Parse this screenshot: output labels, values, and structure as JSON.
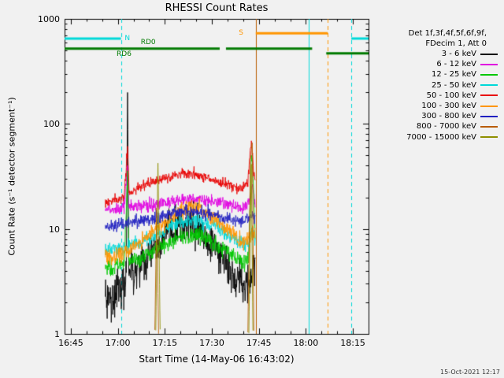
{
  "chart_data": {
    "type": "line",
    "title": "RHESSI Count Rates",
    "xlabel": "Start Time (14-May-06 16:43:02)",
    "ylabel": "Count Rate (s⁻¹ detector segment⁻¹)",
    "timestamp": "15-Oct-2021 12:17",
    "background": "#f1f1f1",
    "axis_color": "#000000",
    "grid": false,
    "y_axis": {
      "scale": "log",
      "min": 1,
      "max": 1000,
      "ticks": [
        {
          "label": "1000",
          "value": 1000
        },
        {
          "label": "100",
          "value": 100
        },
        {
          "label": "10",
          "value": 10
        },
        {
          "label": "1",
          "value": 1
        }
      ]
    },
    "x_axis": {
      "unit": "minutes since 16:43:02",
      "t_min": 0,
      "t_max": 97,
      "ticks": [
        {
          "label": "16:45",
          "t": 2
        },
        {
          "label": "17:00",
          "t": 17
        },
        {
          "label": "17:15",
          "t": 32
        },
        {
          "label": "17:30",
          "t": 47
        },
        {
          "label": "17:45",
          "t": 62
        },
        {
          "label": "18:00",
          "t": 77
        },
        {
          "label": "18:15",
          "t": 92
        }
      ]
    },
    "legend": {
      "position": "right",
      "header_lines": [
        "Det 1f,3f,4f,5f,6f,9f,",
        "FDecim 1, Att 0"
      ],
      "entries": [
        {
          "label": "3 - 6 keV",
          "color": "#000000"
        },
        {
          "label": "6 - 12 keV",
          "color": "#e000e0"
        },
        {
          "label": "12 - 25 keV",
          "color": "#00c800"
        },
        {
          "label": "25 - 50 keV",
          "color": "#00d8d8"
        },
        {
          "label": "50 - 100 keV",
          "color": "#e80000"
        },
        {
          "label": "100 - 300 keV",
          "color": "#ff9500"
        },
        {
          "label": "300 - 800 keV",
          "color": "#2020c0"
        },
        {
          "label": "800 - 7000 keV",
          "color": "#b85c00"
        },
        {
          "label": "7000 - 15000 keV",
          "color": "#8f8f00"
        }
      ]
    },
    "series": [
      {
        "name": "3 - 6 keV",
        "color": "#000000",
        "noise": 0.1,
        "segments": [
          [
            [
              13,
              2.6
            ],
            [
              15,
              2.2
            ],
            [
              17,
              2.7
            ],
            [
              19,
              3.0
            ],
            [
              19.7,
              3.3
            ],
            [
              20.1,
              230
            ],
            [
              20.5,
              3.6
            ],
            [
              23,
              4.2
            ],
            [
              26,
              5.2
            ],
            [
              29,
              6.5
            ],
            [
              32,
              8.3
            ],
            [
              35,
              9.8
            ],
            [
              38,
              10.8
            ],
            [
              41,
              10.8
            ],
            [
              44,
              9.3
            ],
            [
              47,
              7.2
            ],
            [
              50,
              5.2
            ],
            [
              53,
              3.9
            ],
            [
              55.5,
              3.1
            ],
            [
              57.5,
              3.0
            ],
            [
              59,
              3.3
            ],
            [
              60,
              4.0
            ],
            [
              60.8,
              4.6
            ]
          ]
        ]
      },
      {
        "name": "6 - 12 keV",
        "color": "#e000e0",
        "noise": 0.03,
        "segments": [
          [
            [
              13,
              15.5
            ],
            [
              16,
              15.5
            ],
            [
              19,
              15.8
            ],
            [
              20.1,
              40
            ],
            [
              20.5,
              16
            ],
            [
              24,
              16.5
            ],
            [
              28,
              17
            ],
            [
              32,
              17.8
            ],
            [
              36,
              18.6
            ],
            [
              40,
              19.2
            ],
            [
              44,
              19
            ],
            [
              48,
              18.2
            ],
            [
              52,
              17.2
            ],
            [
              55,
              16.3
            ],
            [
              57.5,
              15.8
            ],
            [
              59,
              18
            ],
            [
              60,
              26
            ],
            [
              60.8,
              18
            ]
          ]
        ]
      },
      {
        "name": "12 - 25 keV",
        "color": "#00c800",
        "noise": 0.04,
        "segments": [
          [
            [
              13,
              4.3
            ],
            [
              16,
              4.4
            ],
            [
              19,
              4.6
            ],
            [
              20.1,
              32
            ],
            [
              20.5,
              4.9
            ],
            [
              24,
              5.3
            ],
            [
              28,
              6.1
            ],
            [
              32,
              7.1
            ],
            [
              36,
              8.2
            ],
            [
              40,
              8.7
            ],
            [
              44,
              8.3
            ],
            [
              48,
              7.2
            ],
            [
              52,
              6.0
            ],
            [
              55,
              5.2
            ],
            [
              57.5,
              4.9
            ],
            [
              58.8,
              6
            ],
            [
              59.6,
              55
            ],
            [
              60.2,
              28
            ],
            [
              60.8,
              8
            ]
          ]
        ]
      },
      {
        "name": "25 - 50 keV",
        "color": "#00d8d8",
        "noise": 0.035,
        "segments": [
          [
            [
              13,
              6.3
            ],
            [
              16,
              6.4
            ],
            [
              20,
              6.8
            ],
            [
              24,
              7.4
            ],
            [
              28,
              8.4
            ],
            [
              32,
              9.8
            ],
            [
              36,
              11.2
            ],
            [
              40,
              12
            ],
            [
              44,
              11.6
            ],
            [
              48,
              10.4
            ],
            [
              52,
              8.9
            ],
            [
              55,
              7.8
            ],
            [
              57.5,
              7.1
            ],
            [
              59,
              8
            ],
            [
              60,
              10
            ],
            [
              60.8,
              8.5
            ]
          ]
        ]
      },
      {
        "name": "50 - 100 keV",
        "color": "#e80000",
        "noise": 0.025,
        "segments": [
          [
            [
              13,
              18
            ],
            [
              16,
              19
            ],
            [
              19,
              20
            ],
            [
              20.1,
              60
            ],
            [
              20.6,
              21.5
            ],
            [
              23,
              24
            ],
            [
              26,
              26.5
            ],
            [
              29,
              28.5
            ],
            [
              32,
              30.5
            ],
            [
              35,
              32.5
            ],
            [
              38,
              33.5
            ],
            [
              41,
              33
            ],
            [
              44,
              31.5
            ],
            [
              47,
              29.5
            ],
            [
              50,
              27.5
            ],
            [
              53,
              25.5
            ],
            [
              55,
              24.5
            ],
            [
              57,
              25
            ],
            [
              58.5,
              27
            ],
            [
              59.6,
              72
            ],
            [
              60.3,
              34
            ],
            [
              60.8,
              30
            ]
          ]
        ]
      },
      {
        "name": "100 - 300 keV",
        "color": "#ff9500",
        "noise": 0.04,
        "segments": [
          [
            [
              13,
              5.3
            ],
            [
              16,
              5.5
            ],
            [
              20,
              6.2
            ],
            [
              24,
              7.4
            ],
            [
              28,
              9.2
            ],
            [
              32,
              11.6
            ],
            [
              36,
              14.2
            ],
            [
              40,
              16
            ],
            [
              43,
              15.6
            ],
            [
              46,
              13.8
            ],
            [
              49,
              11.8
            ],
            [
              52,
              9.8
            ],
            [
              54.5,
              8.4
            ],
            [
              56.5,
              7.6
            ],
            [
              58.5,
              8
            ],
            [
              60,
              9.5
            ],
            [
              60.8,
              8.8
            ]
          ]
        ]
      },
      {
        "name": "300 - 800 keV",
        "color": "#2020c0",
        "noise": 0.03,
        "segments": [
          [
            [
              13,
              10.6
            ],
            [
              17,
              11
            ],
            [
              21,
              11.4
            ],
            [
              25,
              12
            ],
            [
              29,
              12.8
            ],
            [
              33,
              13.8
            ],
            [
              37,
              14.6
            ],
            [
              41,
              14.8
            ],
            [
              45,
              14.2
            ],
            [
              49,
              13.3
            ],
            [
              53,
              12.4
            ],
            [
              56,
              12
            ],
            [
              58,
              12.2
            ],
            [
              60,
              13.2
            ],
            [
              60.8,
              13.4
            ]
          ]
        ]
      },
      {
        "name": "800 - 7000 keV",
        "color": "#b85c00",
        "noise": 0.02,
        "segments": [
          [
            [
              28.8,
              1.05
            ],
            [
              29.4,
              16
            ],
            [
              30.0,
              1.05
            ]
          ],
          [
            [
              58.5,
              1.05
            ],
            [
              59.3,
              45
            ],
            [
              59.9,
              68
            ],
            [
              60.4,
              1.05
            ]
          ]
        ]
      },
      {
        "name": "7000 - 15000 keV",
        "color": "#8f8f00",
        "noise": 0.02,
        "segments": [
          [
            [
              29.1,
              1.05
            ],
            [
              29.8,
              44
            ],
            [
              30.5,
              1.05
            ]
          ],
          [
            [
              58.8,
              1.05
            ],
            [
              59.6,
              40
            ],
            [
              60.1,
              1.05
            ]
          ]
        ]
      }
    ],
    "flags": {
      "bars": [
        {
          "name": "night",
          "label": "N",
          "label_t": 19.2,
          "color": "#00d8d8",
          "v": 650,
          "spans": [
            [
              0,
              18
            ],
            [
              91.5,
              97
            ]
          ]
        },
        {
          "name": "saa",
          "label": "S",
          "label_t": 55.6,
          "color": "#ff9500",
          "v": 730,
          "spans": [
            [
              61,
              84
            ]
          ]
        },
        {
          "name": "rd",
          "color": "#007a00",
          "v": 520,
          "spans": [
            [
              0,
              49.5
            ],
            [
              51.5,
              79
            ]
          ],
          "labels": [
            {
              "text": "RD6",
              "t": 16.6
            },
            {
              "text": "RD0",
              "t": 24.3
            }
          ]
        },
        {
          "name": "rd-low",
          "color": "#007a00",
          "v": 470,
          "spans": [
            [
              83.5,
              97
            ]
          ]
        }
      ],
      "vlines": [
        {
          "t": 18,
          "color": "#00d8d8",
          "dash": true
        },
        {
          "t": 61,
          "color": "#b85c00",
          "dash": false
        },
        {
          "t": 78,
          "color": "#00d8d8",
          "dash": false
        },
        {
          "t": 84,
          "color": "#ff9500",
          "dash": true
        },
        {
          "t": 91.5,
          "color": "#00d8d8",
          "dash": true
        }
      ]
    }
  }
}
